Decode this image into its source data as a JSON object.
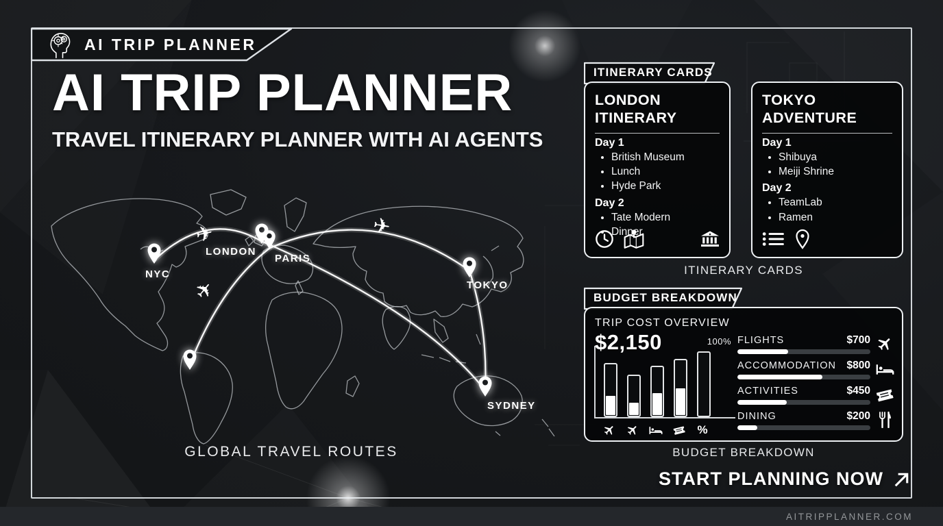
{
  "brand": {
    "logo_label": "AI TRIP PLANNER"
  },
  "hero": {
    "title": "AI TRIP PLANNER",
    "subtitle": "TRAVEL ITINERARY PLANNER WITH AI AGENTS"
  },
  "map": {
    "caption": "GLOBAL TRAVEL ROUTES",
    "pins": [
      {
        "label": "NYC"
      },
      {
        "label": "LONDON"
      },
      {
        "label": "PARIS"
      },
      {
        "label": "TOKYO"
      },
      {
        "label": "SYDNEY"
      },
      {
        "label": ""
      }
    ]
  },
  "itinerary": {
    "tab_label": "ITINERARY CARDS",
    "caption": "ITINERARY CARDS",
    "cards": [
      {
        "title": "LONDON ITINERARY",
        "days": [
          {
            "label": "Day 1",
            "items": [
              "British Museum",
              "Lunch",
              "Hyde Park"
            ]
          },
          {
            "label": "Day 2",
            "items": [
              "Tate Modern",
              "Dinner"
            ]
          }
        ],
        "icons": [
          "clock-icon",
          "map-icon",
          "museum-icon"
        ]
      },
      {
        "title": "TOKYO ADVENTURE",
        "days": [
          {
            "label": "Day 1",
            "items": [
              "Shibuya",
              "Meiji Shrine"
            ]
          },
          {
            "label": "Day 2",
            "items": [
              "TeamLab",
              "Ramen"
            ]
          }
        ],
        "icons": [
          "list-icon",
          "pin-icon"
        ]
      }
    ]
  },
  "budget": {
    "tab_label": "BUDGET BREAKDOWN",
    "caption": "BUDGET BREAKDOWN",
    "overview_label": "TRIP COST OVERVIEW",
    "total": "$2,150",
    "rows": [
      {
        "label": "FLIGHTS",
        "amount": "$700",
        "value": 700,
        "pct": 38,
        "icon": "plane-icon"
      },
      {
        "label": "ACCOMMODATION",
        "amount": "$800",
        "value": 800,
        "pct": 64,
        "icon": "bed-icon"
      },
      {
        "label": "ACTIVITIES",
        "amount": "$450",
        "value": 450,
        "pct": 37,
        "icon": "ticket-icon"
      },
      {
        "label": "DINING",
        "amount": "$200",
        "value": 200,
        "pct": 15,
        "icon": "utensils-icon"
      }
    ]
  },
  "chart_data": {
    "type": "bar",
    "title": "TRIP COST OVERVIEW",
    "total_label": "$2,150",
    "total_value": 2150,
    "annotation": "100%",
    "categories": [
      "FLIGHTS",
      "ACCOMMODATION",
      "ACTIVITIES",
      "DINING"
    ],
    "values": [
      700,
      800,
      450,
      200
    ],
    "stylized_bars": {
      "bar_icons": [
        "plane",
        "plane",
        "bed",
        "ticket",
        "percent"
      ],
      "outline_heights_pct": [
        76,
        60,
        72,
        82,
        92
      ],
      "fill_heights_pct": [
        28,
        18,
        33,
        39,
        0
      ]
    },
    "legend_position": "right",
    "grid": false
  },
  "cta": {
    "label": "START PLANNING NOW"
  },
  "footer": {
    "url": "AITRIPPLANNER.COM"
  }
}
